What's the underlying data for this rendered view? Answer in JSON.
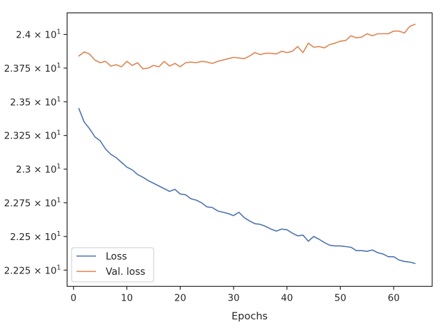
{
  "chart_data": {
    "type": "line",
    "title": "",
    "xlabel": "Epochs",
    "ylabel": "",
    "xlim": [
      -1.2,
      67.2
    ],
    "ylim": [
      22.13,
      24.16
    ],
    "grid": false,
    "legend_position": "lower-left",
    "x_ticks": [
      {
        "value": 0,
        "label": "0"
      },
      {
        "value": 10,
        "label": "10"
      },
      {
        "value": 20,
        "label": "20"
      },
      {
        "value": 30,
        "label": "30"
      },
      {
        "value": 40,
        "label": "40"
      },
      {
        "value": 50,
        "label": "50"
      },
      {
        "value": 60,
        "label": "60"
      }
    ],
    "y_ticks": [
      {
        "value": 22.25,
        "mant": "2.225",
        "exp": "1"
      },
      {
        "value": 22.5,
        "mant": "2.25",
        "exp": "1"
      },
      {
        "value": 22.75,
        "mant": "2.275",
        "exp": "1"
      },
      {
        "value": 23.0,
        "mant": "2.3",
        "exp": "1"
      },
      {
        "value": 23.25,
        "mant": "2.325",
        "exp": "1"
      },
      {
        "value": 23.5,
        "mant": "2.35",
        "exp": "1"
      },
      {
        "value": 23.75,
        "mant": "2.375",
        "exp": "1"
      },
      {
        "value": 24.0,
        "mant": "2.4",
        "exp": "1"
      }
    ],
    "x": [
      1,
      2,
      3,
      4,
      5,
      6,
      7,
      8,
      9,
      10,
      11,
      12,
      13,
      14,
      15,
      16,
      17,
      18,
      19,
      20,
      21,
      22,
      23,
      24,
      25,
      26,
      27,
      28,
      29,
      30,
      31,
      32,
      33,
      34,
      35,
      36,
      37,
      38,
      39,
      40,
      41,
      42,
      43,
      44,
      45,
      46,
      47,
      48,
      49,
      50,
      51,
      52,
      53,
      54,
      55,
      56,
      57,
      58,
      59,
      60,
      61,
      62,
      63,
      64
    ],
    "series": [
      {
        "name": "Loss",
        "color": "#4c72b0",
        "values": [
          23.45,
          23.35,
          23.3,
          23.24,
          23.21,
          23.15,
          23.11,
          23.085,
          23.05,
          23.015,
          22.995,
          22.96,
          22.94,
          22.915,
          22.895,
          22.875,
          22.855,
          22.835,
          22.85,
          22.815,
          22.81,
          22.78,
          22.77,
          22.75,
          22.72,
          22.715,
          22.69,
          22.68,
          22.67,
          22.655,
          22.68,
          22.64,
          22.615,
          22.595,
          22.59,
          22.575,
          22.555,
          22.54,
          22.555,
          22.55,
          22.525,
          22.505,
          22.51,
          22.465,
          22.5,
          22.48,
          22.455,
          22.435,
          22.43,
          22.43,
          22.425,
          22.42,
          22.395,
          22.395,
          22.39,
          22.4,
          22.38,
          22.37,
          22.35,
          22.35,
          22.325,
          22.315,
          22.31,
          22.3
        ]
      },
      {
        "name": "Val. loss",
        "color": "#dd8452",
        "values": [
          23.84,
          23.87,
          23.855,
          23.81,
          23.79,
          23.8,
          23.765,
          23.775,
          23.76,
          23.8,
          23.77,
          23.79,
          23.745,
          23.75,
          23.77,
          23.76,
          23.8,
          23.765,
          23.785,
          23.76,
          23.79,
          23.795,
          23.79,
          23.8,
          23.795,
          23.785,
          23.8,
          23.81,
          23.82,
          23.83,
          23.825,
          23.82,
          23.84,
          23.865,
          23.85,
          23.86,
          23.86,
          23.855,
          23.875,
          23.865,
          23.875,
          23.91,
          23.865,
          23.935,
          23.905,
          23.91,
          23.9,
          23.925,
          23.935,
          23.95,
          23.955,
          23.99,
          23.975,
          23.98,
          24.005,
          23.99,
          24.005,
          24.005,
          24.005,
          24.025,
          24.025,
          24.01,
          24.06,
          24.075
        ]
      }
    ]
  }
}
